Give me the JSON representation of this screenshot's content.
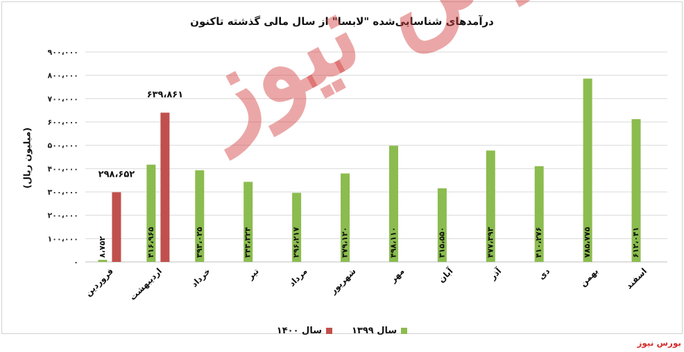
{
  "brand": {
    "label": "بورس نیوز"
  },
  "watermark": {
    "text": "بورس نیوز"
  },
  "colors": {
    "series_1399": "#8bbc4f",
    "series_1400": "#c0504d"
  },
  "chart_data": {
    "type": "bar",
    "title": "درآمدهای شناسایی‌شده \"لابسا\" از سال مالی گذشته تاکنون",
    "xlabel": "",
    "ylabel": "(میلیون ریال)",
    "ylim": [
      0,
      900000
    ],
    "yticks": [
      0,
      100000,
      200000,
      300000,
      400000,
      500000,
      600000,
      700000,
      800000,
      900000
    ],
    "ytick_labels": [
      "۰",
      "۱۰۰،۰۰۰",
      "۲۰۰،۰۰۰",
      "۳۰۰،۰۰۰",
      "۴۰۰،۰۰۰",
      "۵۰۰،۰۰۰",
      "۶۰۰،۰۰۰",
      "۷۰۰،۰۰۰",
      "۸۰۰،۰۰۰",
      "۹۰۰،۰۰۰"
    ],
    "grid": true,
    "legend_position": "bottom",
    "categories": [
      "فروردین",
      "اردیبهشت",
      "خرداد",
      "تیر",
      "مرداد",
      "شهریور",
      "مهر",
      "آبان",
      "آذر",
      "دی",
      "بهمن",
      "اسفند"
    ],
    "series": [
      {
        "name": "سال ۱۳۹۹",
        "values": [
          8752,
          416965,
          393025,
          343324,
          296217,
          379120,
          498110,
          315550,
          477393,
          410276,
          785775,
          612041
        ],
        "labels": [
          "۸،۷۵۲",
          "۴۱۶،۹۶۵",
          "۳۹۳،۰۲۵",
          "۳۴۳،۳۲۴",
          "۲۹۶،۲۱۷",
          "۳۷۹،۱۲۰",
          "۴۹۸،۱۱۰",
          "۳۱۵،۵۵۰",
          "۴۷۷،۳۹۳",
          "۴۱۰،۲۷۶",
          "۷۸۵،۷۷۵",
          "۶۱۲،۰۴۱"
        ]
      },
      {
        "name": "سال ۱۴۰۰",
        "values": [
          298652,
          639861,
          null,
          null,
          null,
          null,
          null,
          null,
          null,
          null,
          null,
          null
        ],
        "labels": [
          "۲۹۸،۶۵۲",
          "۶۳۹،۸۶۱",
          "",
          "",
          "",
          "",
          "",
          "",
          "",
          "",
          "",
          ""
        ]
      }
    ]
  }
}
